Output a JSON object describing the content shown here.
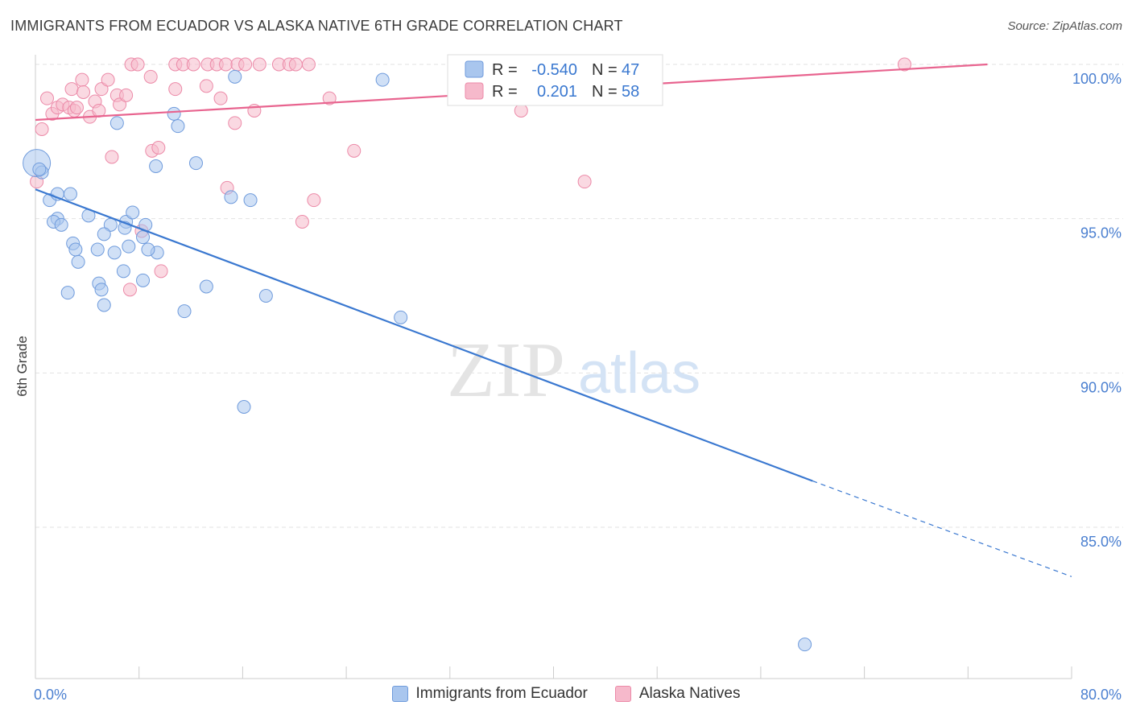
{
  "title": "IMMIGRANTS FROM ECUADOR VS ALASKA NATIVE 6TH GRADE CORRELATION CHART",
  "source": "Source: ZipAtlas.com",
  "watermark": {
    "zip": "ZIP",
    "atlas": "atlas"
  },
  "colors": {
    "blue_fill": "#a9c6ee",
    "blue_stroke": "#6f9bdc",
    "blue_line": "#3a78d0",
    "pink_fill": "#f6b9cb",
    "pink_stroke": "#ec8aa8",
    "pink_line": "#e8648f",
    "grid": "#e2e2e2",
    "tick_text": "#4a7fd0"
  },
  "chart_data": {
    "type": "scatter",
    "title": "IMMIGRANTS FROM ECUADOR VS ALASKA NATIVE 6TH GRADE CORRELATION CHART",
    "xlabel": "",
    "ylabel": "6th Grade",
    "xlim": [
      0,
      80
    ],
    "ylim": [
      80.5,
      100.8
    ],
    "x_tick_labels": [
      "0.0%",
      "80.0%"
    ],
    "y_ticks": [
      85,
      90,
      95,
      100
    ],
    "y_tick_labels": [
      "85.0%",
      "90.0%",
      "95.0%",
      "100.0%"
    ],
    "grid": true,
    "legend_position": "top-center",
    "series": [
      {
        "name": "Immigrants from Ecuador",
        "color": "blue",
        "R": "-0.540",
        "N": "47",
        "trend": {
          "x0": 0,
          "y0": 95.95,
          "x1": 60,
          "y1": 86.5,
          "dash_to_x": 80,
          "dash_to_y": 83.4
        },
        "points": [
          [
            0.1,
            96.8,
            34
          ],
          [
            0.5,
            96.5,
            16
          ],
          [
            0.3,
            96.6,
            16
          ],
          [
            1.1,
            95.6,
            16
          ],
          [
            1.7,
            95.8,
            16
          ],
          [
            2.7,
            95.8,
            16
          ],
          [
            1.7,
            95.0,
            16
          ],
          [
            1.4,
            94.9,
            16
          ],
          [
            2.0,
            94.8,
            16
          ],
          [
            4.1,
            95.1,
            16
          ],
          [
            5.8,
            94.8,
            16
          ],
          [
            7.0,
            94.9,
            16
          ],
          [
            7.5,
            95.2,
            16
          ],
          [
            5.3,
            94.5,
            16
          ],
          [
            6.9,
            94.7,
            16
          ],
          [
            8.5,
            94.8,
            16
          ],
          [
            8.3,
            94.4,
            16
          ],
          [
            2.9,
            94.2,
            16
          ],
          [
            3.1,
            94.0,
            16
          ],
          [
            4.8,
            94.0,
            16
          ],
          [
            6.1,
            93.9,
            16
          ],
          [
            7.2,
            94.1,
            16
          ],
          [
            9.4,
            93.9,
            16
          ],
          [
            8.7,
            94.0,
            16
          ],
          [
            3.3,
            93.6,
            16
          ],
          [
            6.8,
            93.3,
            16
          ],
          [
            4.9,
            92.9,
            16
          ],
          [
            5.1,
            92.7,
            16
          ],
          [
            2.5,
            92.6,
            16
          ],
          [
            8.3,
            93.0,
            16
          ],
          [
            13.2,
            92.8,
            16
          ],
          [
            5.3,
            92.2,
            16
          ],
          [
            11.5,
            92.0,
            16
          ],
          [
            17.8,
            92.5,
            16
          ],
          [
            28.2,
            91.8,
            16
          ],
          [
            9.3,
            96.7,
            16
          ],
          [
            12.4,
            96.8,
            16
          ],
          [
            15.1,
            95.7,
            16
          ],
          [
            16.6,
            95.6,
            16
          ],
          [
            6.3,
            98.1,
            16
          ],
          [
            10.7,
            98.4,
            16
          ],
          [
            11.0,
            98.0,
            16
          ],
          [
            15.4,
            99.6,
            16
          ],
          [
            26.8,
            99.5,
            16
          ],
          [
            16.1,
            88.9,
            16
          ],
          [
            59.4,
            81.2,
            16
          ],
          [
            35.5,
            100.0,
            16
          ]
        ]
      },
      {
        "name": "Alaska Natives",
        "color": "pink",
        "R": "0.201",
        "N": "58",
        "trend": {
          "x0": 0,
          "y0": 98.2,
          "x1": 73.5,
          "y1": 100.0
        },
        "points": [
          [
            0.1,
            96.2,
            16
          ],
          [
            0.5,
            97.9,
            16
          ],
          [
            0.9,
            98.9,
            16
          ],
          [
            1.3,
            98.4,
            16
          ],
          [
            1.7,
            98.6,
            16
          ],
          [
            2.1,
            98.7,
            16
          ],
          [
            2.6,
            98.6,
            16
          ],
          [
            3.0,
            98.5,
            16
          ],
          [
            3.6,
            99.5,
            16
          ],
          [
            4.2,
            98.3,
            16
          ],
          [
            2.8,
            99.2,
            16
          ],
          [
            3.7,
            99.1,
            16
          ],
          [
            4.6,
            98.8,
            16
          ],
          [
            5.1,
            99.2,
            16
          ],
          [
            5.6,
            99.5,
            16
          ],
          [
            6.3,
            99.0,
            16
          ],
          [
            6.5,
            98.7,
            16
          ],
          [
            4.9,
            98.5,
            16
          ],
          [
            7.4,
            100.0,
            16
          ],
          [
            7.9,
            100.0,
            16
          ],
          [
            8.9,
            99.6,
            16
          ],
          [
            10.8,
            100.0,
            16
          ],
          [
            11.4,
            100.0,
            16
          ],
          [
            12.2,
            100.0,
            16
          ],
          [
            13.3,
            100.0,
            16
          ],
          [
            14.0,
            100.0,
            16
          ],
          [
            14.7,
            100.0,
            16
          ],
          [
            15.6,
            100.0,
            16
          ],
          [
            16.2,
            100.0,
            16
          ],
          [
            17.3,
            100.0,
            16
          ],
          [
            18.8,
            100.0,
            16
          ],
          [
            19.6,
            100.0,
            16
          ],
          [
            20.1,
            100.0,
            16
          ],
          [
            21.1,
            100.0,
            16
          ],
          [
            10.8,
            99.2,
            16
          ],
          [
            13.2,
            99.3,
            16
          ],
          [
            14.3,
            98.9,
            16
          ],
          [
            15.4,
            98.1,
            16
          ],
          [
            16.9,
            98.5,
            16
          ],
          [
            22.7,
            98.9,
            16
          ],
          [
            9.0,
            97.2,
            16
          ],
          [
            9.5,
            97.3,
            16
          ],
          [
            5.9,
            97.0,
            16
          ],
          [
            14.8,
            96.0,
            16
          ],
          [
            21.5,
            95.6,
            16
          ],
          [
            20.6,
            94.9,
            16
          ],
          [
            24.6,
            97.2,
            16
          ],
          [
            37.5,
            98.5,
            16
          ],
          [
            37.6,
            99.7,
            16
          ],
          [
            37.9,
            100.0,
            16
          ],
          [
            42.4,
            96.2,
            16
          ],
          [
            47.2,
            100.0,
            16
          ],
          [
            67.1,
            100.0,
            16
          ],
          [
            7.0,
            99.0,
            16
          ],
          [
            8.2,
            94.6,
            16
          ],
          [
            7.3,
            92.7,
            16
          ],
          [
            9.7,
            93.3,
            16
          ],
          [
            3.2,
            98.6,
            16
          ]
        ]
      }
    ]
  },
  "legend": {
    "r_label": "R =",
    "n_label": "N =",
    "rows": [
      {
        "r": "-0.540",
        "n": "47"
      },
      {
        "r": "0.201",
        "n": "58"
      }
    ]
  },
  "bottom_legend": [
    "Immigrants from Ecuador",
    "Alaska Natives"
  ]
}
